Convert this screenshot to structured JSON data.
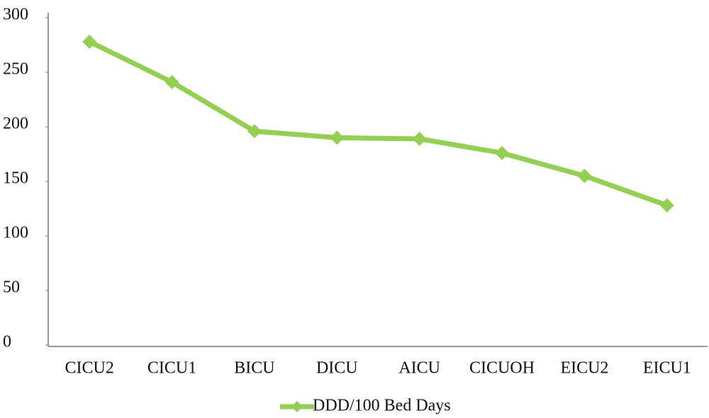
{
  "chart_data": {
    "type": "line",
    "categories": [
      "CICU2",
      "CICU1",
      "BICU",
      "DICU",
      "AICU",
      "CICUOH",
      "EICU2",
      "EICU1"
    ],
    "series": [
      {
        "name": "DDD/100 Bed Days",
        "color": "#92d050",
        "values": [
          278,
          241,
          196,
          190,
          189,
          176,
          155,
          128
        ]
      }
    ],
    "ylim": [
      0,
      300
    ],
    "yticks": [
      0,
      50,
      100,
      150,
      200,
      250,
      300
    ],
    "grid": false,
    "legend": "bottom"
  }
}
